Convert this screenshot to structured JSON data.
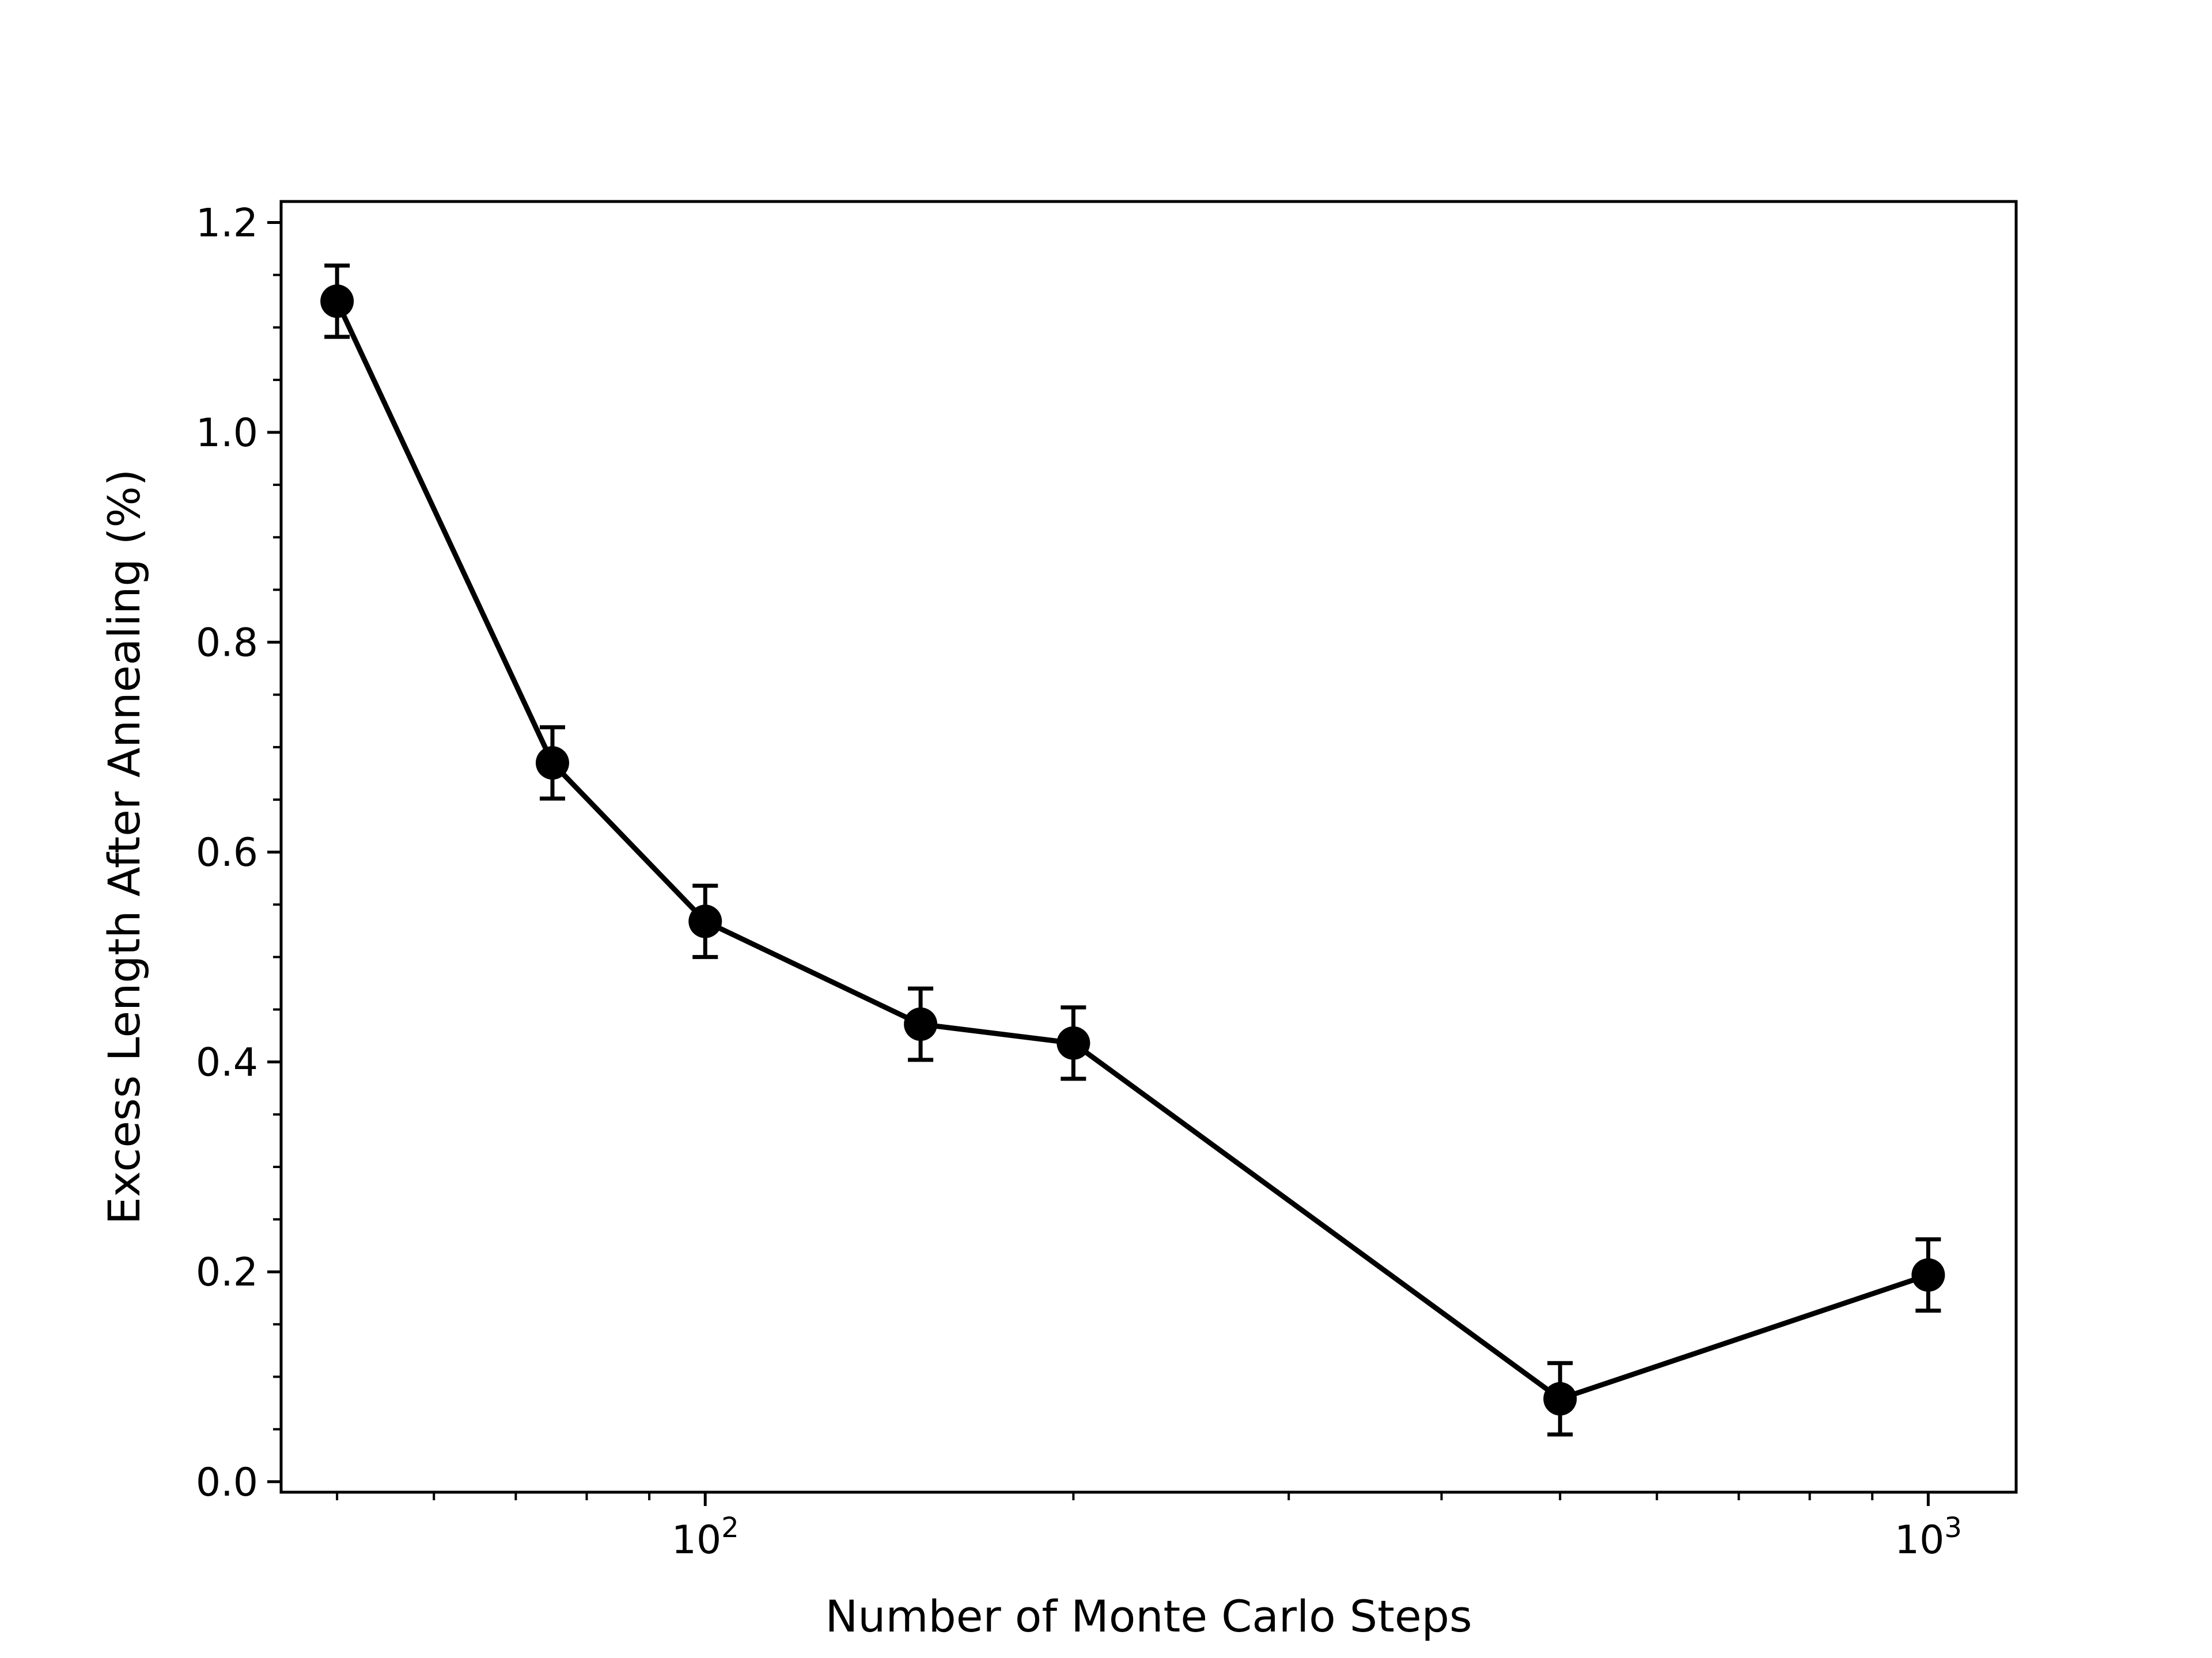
{
  "chart_data": {
    "type": "line",
    "title": "",
    "xlabel": "Number of Monte Carlo Steps",
    "ylabel": "Excess Length After Annealing (%)",
    "xscale": "log",
    "xlim": [
      45,
      1180
    ],
    "ylim": [
      -0.01,
      1.22
    ],
    "xticks": [
      {
        "value": 100,
        "base": "10",
        "exp": "2"
      },
      {
        "value": 1000,
        "base": "10",
        "exp": "3"
      }
    ],
    "yticks": [
      {
        "value": 0.0,
        "label": "0.0"
      },
      {
        "value": 0.2,
        "label": "0.2"
      },
      {
        "value": 0.4,
        "label": "0.4"
      },
      {
        "value": 0.6,
        "label": "0.6"
      },
      {
        "value": 0.8,
        "label": "0.8"
      },
      {
        "value": 1.0,
        "label": "1.0"
      },
      {
        "value": 1.2,
        "label": "1.2"
      }
    ],
    "grid": false,
    "legend": "none",
    "series": [
      {
        "x": [
          50,
          75,
          100,
          150,
          200,
          500,
          1000
        ],
        "y": [
          1.125,
          0.685,
          0.534,
          0.436,
          0.418,
          0.079,
          0.197
        ],
        "yerr": [
          0.034,
          0.034,
          0.034,
          0.034,
          0.034,
          0.034,
          0.034
        ],
        "color": "#000000"
      }
    ]
  }
}
